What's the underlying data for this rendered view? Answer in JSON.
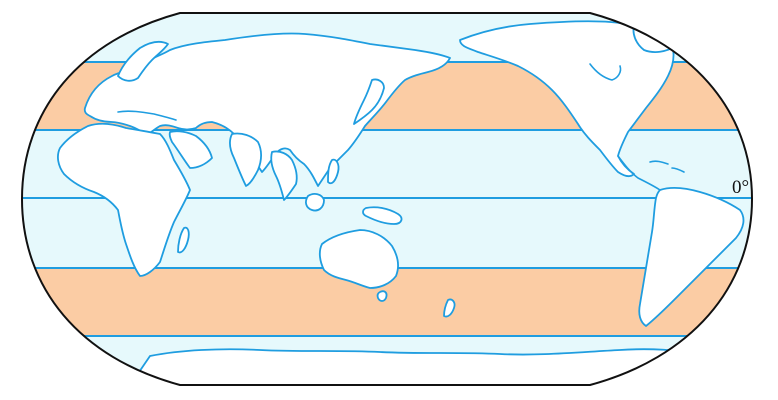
{
  "map": {
    "equator_label": "0°",
    "colors": {
      "cool_band": "#e6f9fc",
      "warm_band": "#fbcca4",
      "lines": "#1f9de0",
      "land": "#ffffff",
      "outline": "#111111"
    },
    "bands": [
      {
        "name": "north-polar",
        "color": "cool"
      },
      {
        "name": "north-temperate",
        "color": "warm"
      },
      {
        "name": "north-subtropical",
        "color": "cool"
      },
      {
        "name": "tropical-north",
        "color": "cool"
      },
      {
        "name": "tropical-south",
        "color": "cool"
      },
      {
        "name": "south-temperate",
        "color": "warm"
      },
      {
        "name": "south-polar",
        "color": "cool"
      }
    ]
  }
}
